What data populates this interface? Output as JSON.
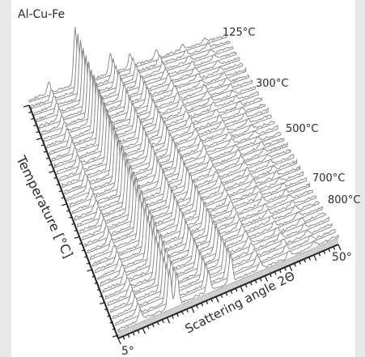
{
  "chart_data": {
    "type": "waterfall",
    "title": "Al-Cu-Fe",
    "xlabel": "Scattering angle 2Θ",
    "ylabel": "Temperature [°C]",
    "x_tick_labels": [
      "5°",
      "50°"
    ],
    "xlim": [
      5,
      50
    ],
    "temperature_labels": [
      "125°C",
      "300°C",
      "500°C",
      "700°C",
      "800°C"
    ],
    "temperature_range": [
      125,
      800
    ],
    "trace_count": 36,
    "peaks": [
      {
        "two_theta": 9.5,
        "intensity": 0.18
      },
      {
        "two_theta": 15.5,
        "intensity": 1.0
      },
      {
        "two_theta": 17.0,
        "intensity": 0.55
      },
      {
        "two_theta": 23.5,
        "intensity": 0.35
      },
      {
        "two_theta": 28.0,
        "intensity": 0.4
      },
      {
        "two_theta": 34.0,
        "intensity": 0.14
      },
      {
        "two_theta": 40.0,
        "intensity": 0.1
      },
      {
        "two_theta": 45.0,
        "intensity": 0.08
      }
    ],
    "line_color": "#8a8a8a",
    "floor_color": "#cfcfcf",
    "grid": false
  }
}
